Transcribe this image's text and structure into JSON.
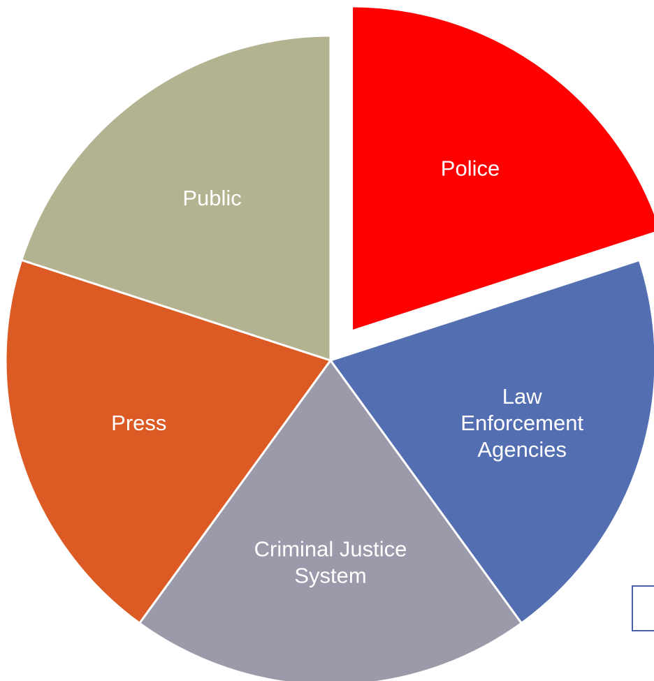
{
  "chart_data": {
    "type": "pie",
    "title": "",
    "exploded": "Police",
    "slices": [
      {
        "label_lines": [
          "Police"
        ],
        "value": 20,
        "color": "#ff0000"
      },
      {
        "label_lines": [
          "Law",
          "Enforcement",
          "Agencies"
        ],
        "value": 20,
        "color": "#546fb1"
      },
      {
        "label_lines": [
          "Criminal Justice",
          "System"
        ],
        "value": 20,
        "color": "#9a9aab"
      },
      {
        "label_lines": [
          "Press"
        ],
        "value": 20,
        "color": "#dc5a23"
      },
      {
        "label_lines": [
          "Public"
        ],
        "value": 20,
        "color": "#b4b391"
      }
    ]
  }
}
